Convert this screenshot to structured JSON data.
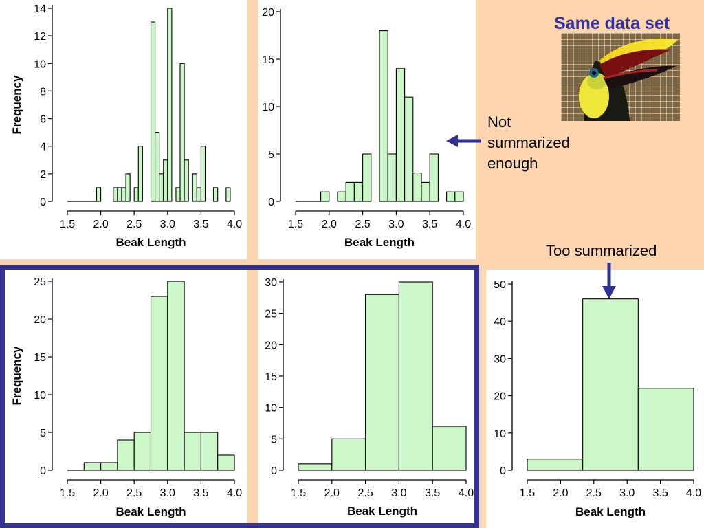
{
  "header": {
    "title": "Same data set"
  },
  "annotations": {
    "not_summarized": [
      "Not",
      "summarized",
      "enough"
    ],
    "too_summarized": "Too summarized"
  },
  "colors": {
    "bar_fill": "#ccf7c8",
    "frame": "#323292",
    "title": "#3333a0",
    "background": "#fdd5ae"
  },
  "chart_data": [
    {
      "type": "bar",
      "xlabel": "Beak Length",
      "ylabel": "Frequency",
      "xlim": [
        1.5,
        4.0
      ],
      "ylim": [
        0,
        14.5
      ],
      "yticks": [
        0,
        2,
        4,
        6,
        8,
        10,
        12,
        14
      ],
      "xticks": [
        "1.5",
        "2.0",
        "2.5",
        "3.0",
        "3.5",
        "4.0"
      ],
      "bin_width": 0.0625,
      "bins": [
        {
          "x0": 1.9375,
          "count": 1
        },
        {
          "x0": 2.1875,
          "count": 1
        },
        {
          "x0": 2.25,
          "count": 1
        },
        {
          "x0": 2.3125,
          "count": 1
        },
        {
          "x0": 2.375,
          "count": 2
        },
        {
          "x0": 2.5,
          "count": 1
        },
        {
          "x0": 2.5625,
          "count": 4
        },
        {
          "x0": 2.75,
          "count": 13
        },
        {
          "x0": 2.8125,
          "count": 5
        },
        {
          "x0": 2.875,
          "count": 2
        },
        {
          "x0": 2.9375,
          "count": 3
        },
        {
          "x0": 3.0,
          "count": 14
        },
        {
          "x0": 3.125,
          "count": 1
        },
        {
          "x0": 3.1875,
          "count": 10
        },
        {
          "x0": 3.25,
          "count": 3
        },
        {
          "x0": 3.375,
          "count": 2
        },
        {
          "x0": 3.4375,
          "count": 1
        },
        {
          "x0": 3.5,
          "count": 4
        },
        {
          "x0": 3.6875,
          "count": 1
        },
        {
          "x0": 3.875,
          "count": 1
        }
      ]
    },
    {
      "type": "bar",
      "xlabel": "Beak Length",
      "ylabel": "",
      "xlim": [
        1.5,
        4.0
      ],
      "ylim": [
        0,
        20.5
      ],
      "yticks": [
        0,
        5,
        10,
        15,
        20
      ],
      "xticks": [
        "1.5",
        "2.0",
        "2.5",
        "3.0",
        "3.5",
        "4.0"
      ],
      "bin_width": 0.125,
      "bins": [
        {
          "x0": 1.875,
          "count": 1
        },
        {
          "x0": 2.125,
          "count": 1
        },
        {
          "x0": 2.25,
          "count": 2
        },
        {
          "x0": 2.375,
          "count": 2
        },
        {
          "x0": 2.5,
          "count": 5
        },
        {
          "x0": 2.75,
          "count": 18
        },
        {
          "x0": 2.875,
          "count": 5
        },
        {
          "x0": 3.0,
          "count": 14
        },
        {
          "x0": 3.125,
          "count": 11
        },
        {
          "x0": 3.25,
          "count": 3
        },
        {
          "x0": 3.375,
          "count": 2
        },
        {
          "x0": 3.5,
          "count": 5
        },
        {
          "x0": 3.75,
          "count": 1
        },
        {
          "x0": 3.875,
          "count": 1
        }
      ]
    },
    {
      "type": "bar",
      "xlabel": "Beak Length",
      "ylabel": "Frequency",
      "xlim": [
        1.5,
        4.0
      ],
      "ylim": [
        0,
        26
      ],
      "yticks": [
        0,
        5,
        10,
        15,
        20,
        25
      ],
      "xticks": [
        "1.5",
        "2.0",
        "2.5",
        "3.0",
        "3.5",
        "4.0"
      ],
      "bin_width": 0.25,
      "bins": [
        {
          "x0": 1.75,
          "count": 1
        },
        {
          "x0": 2.0,
          "count": 1
        },
        {
          "x0": 2.25,
          "count": 4
        },
        {
          "x0": 2.5,
          "count": 5
        },
        {
          "x0": 2.75,
          "count": 23
        },
        {
          "x0": 3.0,
          "count": 25
        },
        {
          "x0": 3.25,
          "count": 5
        },
        {
          "x0": 3.5,
          "count": 5
        },
        {
          "x0": 3.75,
          "count": 2
        }
      ]
    },
    {
      "type": "bar",
      "xlabel": "Beak Length",
      "ylabel": "",
      "xlim": [
        1.5,
        4.0
      ],
      "ylim": [
        0,
        31
      ],
      "yticks": [
        0,
        5,
        10,
        15,
        20,
        25,
        30
      ],
      "xticks": [
        "1.5",
        "2.0",
        "2.5",
        "3.0",
        "3.5",
        "4.0"
      ],
      "bin_width": 0.5,
      "bins": [
        {
          "x0": 1.5,
          "count": 1
        },
        {
          "x0": 2.0,
          "count": 5
        },
        {
          "x0": 2.5,
          "count": 28
        },
        {
          "x0": 3.0,
          "count": 30
        },
        {
          "x0": 3.5,
          "count": 7
        }
      ]
    },
    {
      "type": "bar",
      "xlabel": "Beak Length",
      "ylabel": "",
      "xlim": [
        1.5,
        4.0
      ],
      "ylim": [
        0,
        52
      ],
      "yticks": [
        0,
        10,
        20,
        30,
        40,
        50
      ],
      "xticks": [
        "1.5",
        "2.0",
        "2.5",
        "3.0",
        "3.5",
        "4.0"
      ],
      "bin_width": 0.8333,
      "bins": [
        {
          "x0": 1.5,
          "count": 3
        },
        {
          "x0": 2.3333,
          "count": 46
        },
        {
          "x0": 3.1667,
          "count": 22
        }
      ]
    }
  ]
}
